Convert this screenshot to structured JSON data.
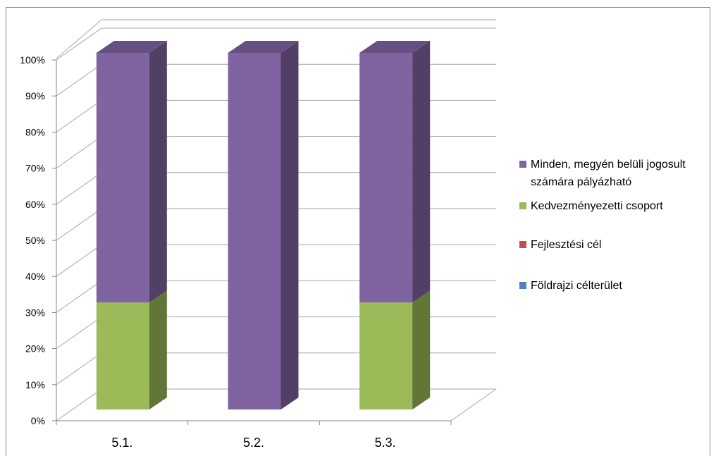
{
  "chart_data": {
    "type": "bar",
    "stacked": true,
    "percent_stacked": true,
    "three_d": true,
    "categories": [
      "5.1.",
      "5.2.",
      "5.3."
    ],
    "series": [
      {
        "name": "Földrajzi célterület",
        "color": "#4f81bd",
        "values": [
          0,
          0,
          0
        ]
      },
      {
        "name": "Fejlesztési cél",
        "color": "#c0504d",
        "values": [
          0,
          0,
          0
        ]
      },
      {
        "name": "Kedvezményezetti csoport",
        "color": "#9bbb59",
        "values": [
          30,
          0,
          30
        ]
      },
      {
        "name": "Minden, megyén belüli jogosult számára pályázható",
        "color": "#8064a2",
        "values": [
          70,
          100,
          70
        ]
      }
    ],
    "yticks": [
      "0%",
      "10%",
      "20%",
      "30%",
      "40%",
      "50%",
      "60%",
      "70%",
      "80%",
      "90%",
      "100%"
    ],
    "ylim": [
      0,
      100
    ],
    "grid": true,
    "legend_position": "right"
  }
}
